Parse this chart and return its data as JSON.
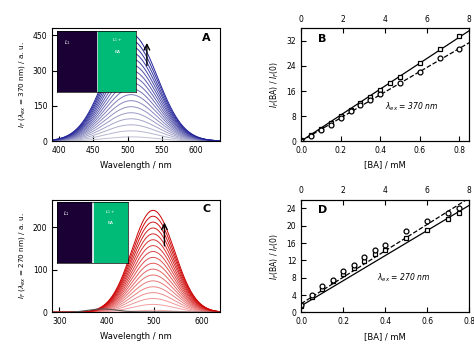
{
  "panel_A": {
    "label": "A",
    "xlabel": "Wavelength / nm",
    "ylabel": "I_F (λ_ex = 370 nm) / a. u.",
    "xlim": [
      390,
      635
    ],
    "ylim": [
      0,
      480
    ],
    "peak_wl": 505,
    "sigma": 38,
    "n_curves": 18,
    "amp_min": 18,
    "amp_max": 455,
    "yticks": [
      0,
      150,
      300,
      450
    ],
    "xticks": [
      400,
      450,
      500,
      550,
      600
    ]
  },
  "panel_B": {
    "label": "B",
    "xlabel": "[BA] / mM",
    "ylabel": "I_F(BA) / I_F(0)",
    "xlim": [
      0.0,
      0.85
    ],
    "ylim": [
      0,
      36
    ],
    "xlim2": [
      0.0,
      8.0
    ],
    "annotation": "λ_ex = 370 nm",
    "yticks": [
      0,
      8,
      16,
      24,
      32
    ],
    "xticks": [
      0.0,
      0.2,
      0.4,
      0.6,
      0.8
    ],
    "xticks2": [
      0.0,
      2.0,
      4.0,
      6.0,
      8.0
    ],
    "sq_ba": [
      0.0,
      0.05,
      0.1,
      0.15,
      0.2,
      0.25,
      0.3,
      0.35,
      0.4,
      0.45,
      0.5,
      0.6,
      0.7,
      0.8
    ],
    "sq_val": [
      0.2,
      1.8,
      3.8,
      5.8,
      8.0,
      10.0,
      12.2,
      14.0,
      16.2,
      18.5,
      20.5,
      25.0,
      29.5,
      33.5
    ],
    "ci_ba": [
      0.0,
      0.05,
      0.1,
      0.15,
      0.2,
      0.25,
      0.3,
      0.35,
      0.4,
      0.5,
      0.6,
      0.7,
      0.8
    ],
    "ci_val": [
      0.0,
      1.5,
      3.5,
      5.2,
      7.5,
      9.5,
      11.5,
      13.0,
      15.0,
      18.5,
      22.0,
      26.5,
      29.5
    ],
    "sq_slope": 41.5,
    "sq_intercept": 0.0,
    "ci_slope": 37.0,
    "ci_intercept": 0.0
  },
  "panel_C": {
    "label": "C",
    "xlabel": "Wavelength / nm",
    "ylabel": "I_F (λ_ex = 270 nm) / a. u.",
    "xlim": [
      285,
      640
    ],
    "ylim": [
      0,
      265
    ],
    "peak_wl": 498,
    "sigma": 45,
    "n_curves": 18,
    "amp_min": 5,
    "amp_max": 240,
    "yticks": [
      0,
      100,
      200
    ],
    "xticks": [
      300,
      400,
      500,
      600
    ],
    "dark_amp": 8,
    "dark_sigma": 30,
    "dark_peak": 390
  },
  "panel_D": {
    "label": "D",
    "xlabel": "[BA] / mM",
    "ylabel": "I_F(BA) / I_F(0)",
    "xlim": [
      0.0,
      0.8
    ],
    "ylim": [
      0,
      26
    ],
    "xlim2": [
      0.0,
      8.0
    ],
    "annotation": "λ_ex = 270 nm",
    "yticks": [
      0,
      4,
      8,
      12,
      16,
      20,
      24
    ],
    "xticks": [
      0.0,
      0.2,
      0.4,
      0.6,
      0.8
    ],
    "xticks2": [
      0.0,
      2.0,
      4.0,
      6.0,
      8.0
    ],
    "sq_ba": [
      0.0,
      0.05,
      0.1,
      0.15,
      0.2,
      0.25,
      0.3,
      0.35,
      0.4,
      0.5,
      0.6,
      0.7,
      0.75
    ],
    "sq_val": [
      1.5,
      3.5,
      5.5,
      7.2,
      8.8,
      10.2,
      11.8,
      13.5,
      14.5,
      17.2,
      19.0,
      21.5,
      23.0
    ],
    "ci_ba": [
      0.0,
      0.05,
      0.1,
      0.15,
      0.2,
      0.25,
      0.3,
      0.35,
      0.4,
      0.5,
      0.6,
      0.7,
      0.75
    ],
    "ci_val": [
      1.8,
      4.0,
      6.0,
      7.5,
      9.5,
      11.0,
      12.8,
      14.5,
      15.5,
      18.8,
      21.0,
      23.0,
      24.2
    ],
    "sq_slope": 29.0,
    "sq_intercept": 1.5,
    "ci_slope": 30.5,
    "ci_intercept": 2.0
  }
}
